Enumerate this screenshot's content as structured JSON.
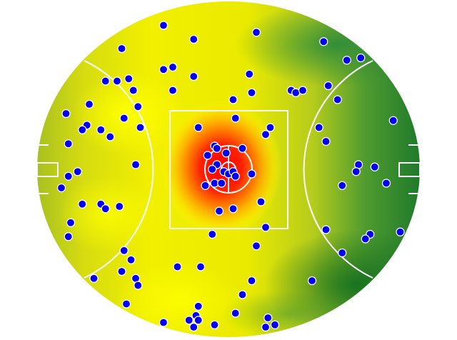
{
  "chart_data": {
    "type": "heatmap",
    "overlay": "scatter",
    "surface": "oval-sports-field",
    "grid": false,
    "legend": "none",
    "colors": {
      "point_fill": "#0000ee",
      "point_stroke": "#ffffff",
      "heat_high": "#ff0000",
      "heat_mid": "#ffff00",
      "heat_low": "#1e7a2e",
      "lines": "#ffffff"
    },
    "xlim": [
      -82,
      82
    ],
    "ylim": [
      -72,
      72
    ],
    "points": [
      [
        -28,
        62
      ],
      [
        -15,
        56
      ],
      [
        12,
        59
      ],
      [
        41,
        55
      ],
      [
        -46,
        52
      ],
      [
        51,
        47
      ],
      [
        57,
        48
      ],
      [
        -28,
        43
      ],
      [
        -24,
        44
      ],
      [
        9,
        41
      ],
      [
        -43,
        39
      ],
      [
        -53,
        38
      ],
      [
        -48,
        38
      ],
      [
        -15,
        40
      ],
      [
        -41,
        34
      ],
      [
        -24,
        34
      ],
      [
        10,
        33
      ],
      [
        2,
        30
      ],
      [
        27,
        34
      ],
      [
        29,
        33
      ],
      [
        32,
        34
      ],
      [
        43,
        36
      ],
      [
        47,
        30
      ],
      [
        -60,
        28
      ],
      [
        -70,
        24
      ],
      [
        -39,
        27
      ],
      [
        -45,
        22
      ],
      [
        3,
        22
      ],
      [
        71,
        21
      ],
      [
        -61,
        19
      ],
      [
        -63,
        17
      ],
      [
        -55,
        17
      ],
      [
        -51,
        14
      ],
      [
        -38,
        18
      ],
      [
        -13,
        18
      ],
      [
        18,
        18
      ],
      [
        16,
        15
      ],
      [
        39,
        18
      ],
      [
        42,
        12
      ],
      [
        -69,
        11
      ],
      [
        -6,
        10
      ],
      [
        -5,
        9
      ],
      [
        6,
        9
      ],
      [
        -1,
        7
      ],
      [
        -9,
        6
      ],
      [
        -5,
        2
      ],
      [
        -40,
        2
      ],
      [
        -7,
        0
      ],
      [
        -2,
        -1
      ],
      [
        0,
        -2
      ],
      [
        2,
        -1
      ],
      [
        3,
        -3
      ],
      [
        10,
        -2
      ],
      [
        -65,
        -1
      ],
      [
        -69,
        -3
      ],
      [
        56,
        2
      ],
      [
        55,
        -1
      ],
      [
        63,
        1
      ],
      [
        -10,
        -7
      ],
      [
        -6,
        -6
      ],
      [
        -3,
        -6
      ],
      [
        49,
        -7
      ],
      [
        68,
        -6
      ],
      [
        -72,
        -8
      ],
      [
        14,
        -14
      ],
      [
        -63,
        -15
      ],
      [
        -55,
        -15
      ],
      [
        -53,
        -17
      ],
      [
        -47,
        -16
      ],
      [
        -4,
        -18
      ],
      [
        2,
        -17
      ],
      [
        -68,
        -23
      ],
      [
        -69,
        -29
      ],
      [
        16,
        -25
      ],
      [
        42,
        -26
      ],
      [
        -7,
        -28
      ],
      [
        61,
        -28
      ],
      [
        59,
        -30
      ],
      [
        74,
        -27
      ],
      [
        -45,
        -35
      ],
      [
        12,
        -33
      ],
      [
        49,
        -36
      ],
      [
        -42,
        -39
      ],
      [
        -46,
        -44
      ],
      [
        -22,
        -42
      ],
      [
        -12,
        -42
      ],
      [
        -58,
        -47
      ],
      [
        -40,
        -47
      ],
      [
        -39,
        -50
      ],
      [
        10,
        -48
      ],
      [
        36,
        -48
      ],
      [
        6,
        -54
      ],
      [
        -44,
        -58
      ],
      [
        -13,
        -59
      ],
      [
        3,
        -62
      ],
      [
        -14,
        -63
      ],
      [
        -28,
        -66
      ],
      [
        -17,
        -65
      ],
      [
        -13,
        -65
      ],
      [
        17,
        -64
      ],
      [
        -6,
        -67
      ],
      [
        -15,
        -68
      ],
      [
        16,
        -68
      ],
      [
        20,
        -67
      ]
    ]
  }
}
